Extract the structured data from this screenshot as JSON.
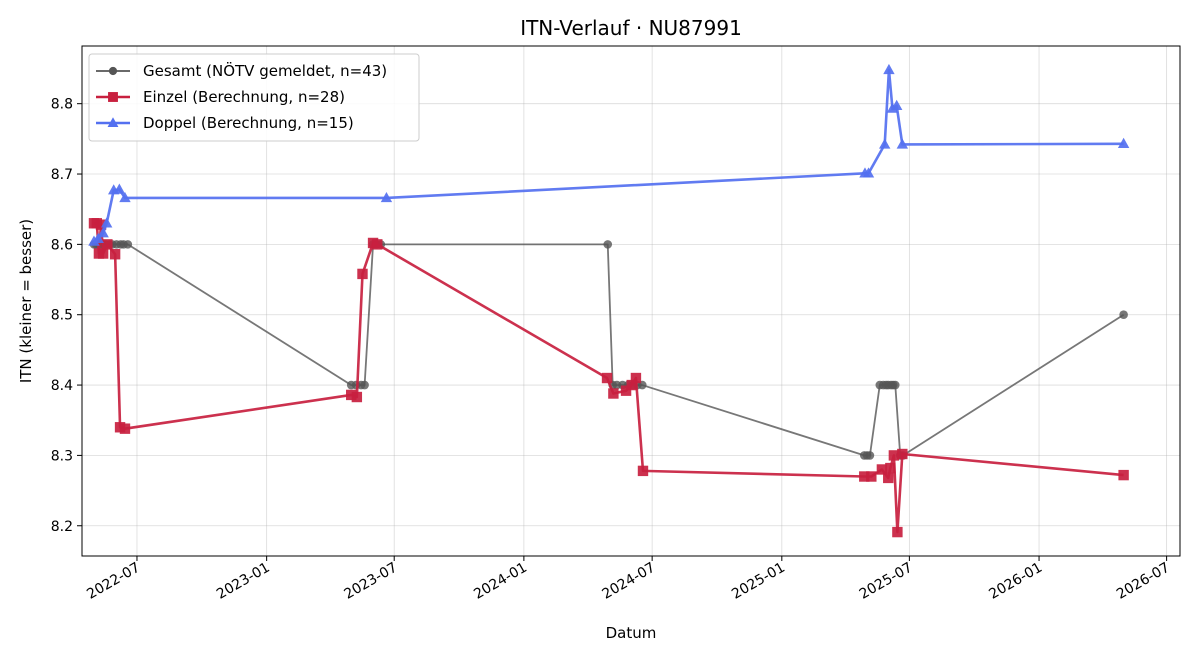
{
  "chart_data": {
    "type": "line",
    "title": "ITN-Verlauf · NU87991",
    "xlabel": "Datum",
    "ylabel": "ITN  (kleiner = besser)",
    "x_axis": "date",
    "xlim": [
      "2022-04-14",
      "2026-07-20"
    ],
    "ylim": [
      8.157,
      8.882
    ],
    "grid": true,
    "legend_position": "top-left",
    "x_ticks": [
      "2022-07",
      "2023-01",
      "2023-07",
      "2024-01",
      "2024-07",
      "2025-01",
      "2025-07",
      "2026-01",
      "2026-07"
    ],
    "y_ticks": [
      "8.2",
      "8.3",
      "8.4",
      "8.5",
      "8.6",
      "8.7",
      "8.8"
    ],
    "series": [
      {
        "name": "Gesamt (NÖTV gemeldet, n=43)",
        "color": "#555555",
        "marker": "circle",
        "points": [
          [
            "2022-05-01",
            8.6
          ],
          [
            "2022-05-04",
            8.6
          ],
          [
            "2022-05-07",
            8.6
          ],
          [
            "2022-05-10",
            8.6
          ],
          [
            "2022-05-14",
            8.6
          ],
          [
            "2022-05-18",
            8.6
          ],
          [
            "2022-05-23",
            8.6
          ],
          [
            "2022-05-27",
            8.6
          ],
          [
            "2022-06-02",
            8.6
          ],
          [
            "2022-06-08",
            8.6
          ],
          [
            "2022-06-12",
            8.6
          ],
          [
            "2022-06-18",
            8.6
          ],
          [
            "2023-05-01",
            8.4
          ],
          [
            "2023-05-08",
            8.4
          ],
          [
            "2023-05-15",
            8.4
          ],
          [
            "2023-05-20",
            8.4
          ],
          [
            "2023-06-01",
            8.6
          ],
          [
            "2023-06-06",
            8.6
          ],
          [
            "2023-06-12",
            8.6
          ],
          [
            "2024-04-29",
            8.6
          ],
          [
            "2024-05-06",
            8.4
          ],
          [
            "2024-05-12",
            8.4
          ],
          [
            "2024-05-20",
            8.4
          ],
          [
            "2024-05-28",
            8.4
          ],
          [
            "2024-06-04",
            8.4
          ],
          [
            "2024-06-10",
            8.4
          ],
          [
            "2024-06-17",
            8.4
          ],
          [
            "2025-04-28",
            8.3
          ],
          [
            "2025-05-02",
            8.3
          ],
          [
            "2025-05-06",
            8.3
          ],
          [
            "2025-05-20",
            8.4
          ],
          [
            "2025-05-25",
            8.4
          ],
          [
            "2025-05-29",
            8.4
          ],
          [
            "2025-06-01",
            8.4
          ],
          [
            "2025-06-05",
            8.4
          ],
          [
            "2025-06-08",
            8.4
          ],
          [
            "2025-06-11",
            8.4
          ],
          [
            "2025-06-18",
            8.3
          ],
          [
            "2025-06-22",
            8.3
          ],
          [
            "2026-05-01",
            8.5
          ]
        ]
      },
      {
        "name": "Einzel (Berechnung, n=28)",
        "color": "#c8203f",
        "marker": "square",
        "points": [
          [
            "2022-05-01",
            8.63
          ],
          [
            "2022-05-05",
            8.63
          ],
          [
            "2022-05-08",
            8.587
          ],
          [
            "2022-05-11",
            8.628
          ],
          [
            "2022-05-14",
            8.587
          ],
          [
            "2022-05-20",
            8.6
          ],
          [
            "2022-05-31",
            8.586
          ],
          [
            "2022-06-07",
            8.34
          ],
          [
            "2022-06-14",
            8.338
          ],
          [
            "2023-05-01",
            8.386
          ],
          [
            "2023-05-09",
            8.383
          ],
          [
            "2023-05-17",
            8.558
          ],
          [
            "2023-06-01",
            8.602
          ],
          [
            "2023-06-07",
            8.6
          ],
          [
            "2024-04-28",
            8.41
          ],
          [
            "2024-05-07",
            8.388
          ],
          [
            "2024-05-25",
            8.392
          ],
          [
            "2024-06-02",
            8.4
          ],
          [
            "2024-06-08",
            8.41
          ],
          [
            "2024-06-18",
            8.278
          ],
          [
            "2025-04-28",
            8.27
          ],
          [
            "2025-05-08",
            8.27
          ],
          [
            "2025-05-23",
            8.28
          ],
          [
            "2025-06-01",
            8.268
          ],
          [
            "2025-06-04",
            8.282
          ],
          [
            "2025-06-09",
            8.3
          ],
          [
            "2025-06-14",
            8.191
          ],
          [
            "2025-06-21",
            8.302
          ],
          [
            "2026-05-01",
            8.272
          ]
        ]
      },
      {
        "name": "Doppel (Berechnung, n=15)",
        "color": "#5470f0",
        "marker": "triangle",
        "points": [
          [
            "2022-05-01",
            8.604
          ],
          [
            "2022-05-07",
            8.608
          ],
          [
            "2022-05-14",
            8.616
          ],
          [
            "2022-05-19",
            8.63
          ],
          [
            "2022-05-29",
            8.677
          ],
          [
            "2022-06-06",
            8.678
          ],
          [
            "2022-06-14",
            8.666
          ],
          [
            "2023-06-20",
            8.666
          ],
          [
            "2025-04-29",
            8.701
          ],
          [
            "2025-05-04",
            8.701
          ],
          [
            "2025-05-27",
            8.742
          ],
          [
            "2025-06-02",
            8.848
          ],
          [
            "2025-06-07",
            8.793
          ],
          [
            "2025-06-13",
            8.797
          ],
          [
            "2025-06-21",
            8.742
          ],
          [
            "2026-05-01",
            8.743
          ]
        ]
      }
    ]
  }
}
